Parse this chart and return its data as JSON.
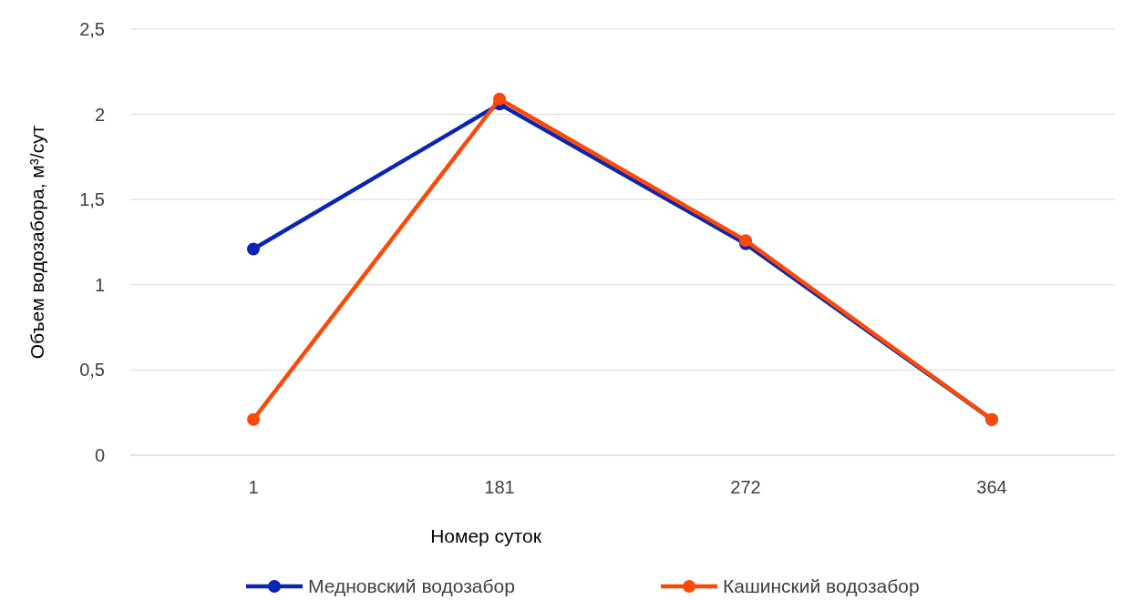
{
  "chart_data": {
    "type": "line",
    "xlabel": "Номер суток",
    "ylabel": "Объем водозабора, м³/сут",
    "categories": [
      "1",
      "181",
      "272",
      "364"
    ],
    "series": [
      {
        "name": "Медновский водозабор",
        "color": "#0a24b4",
        "values": [
          1.21,
          2.06,
          1.24,
          0.21
        ]
      },
      {
        "name": "Кашинский водозабор",
        "color": "#fa4a0a",
        "values": [
          0.21,
          2.09,
          1.26,
          0.21
        ]
      }
    ],
    "ylim": [
      0,
      2.5
    ],
    "yticks": [
      {
        "value": 0,
        "label": "0"
      },
      {
        "value": 0.5,
        "label": "0,5"
      },
      {
        "value": 1,
        "label": "1"
      },
      {
        "value": 1.5,
        "label": "1,5"
      },
      {
        "value": 2,
        "label": "2"
      },
      {
        "value": 2.5,
        "label": "2,5"
      }
    ],
    "grid": "y",
    "legend": "bottom",
    "marker": "circle",
    "line_style": "solid"
  }
}
